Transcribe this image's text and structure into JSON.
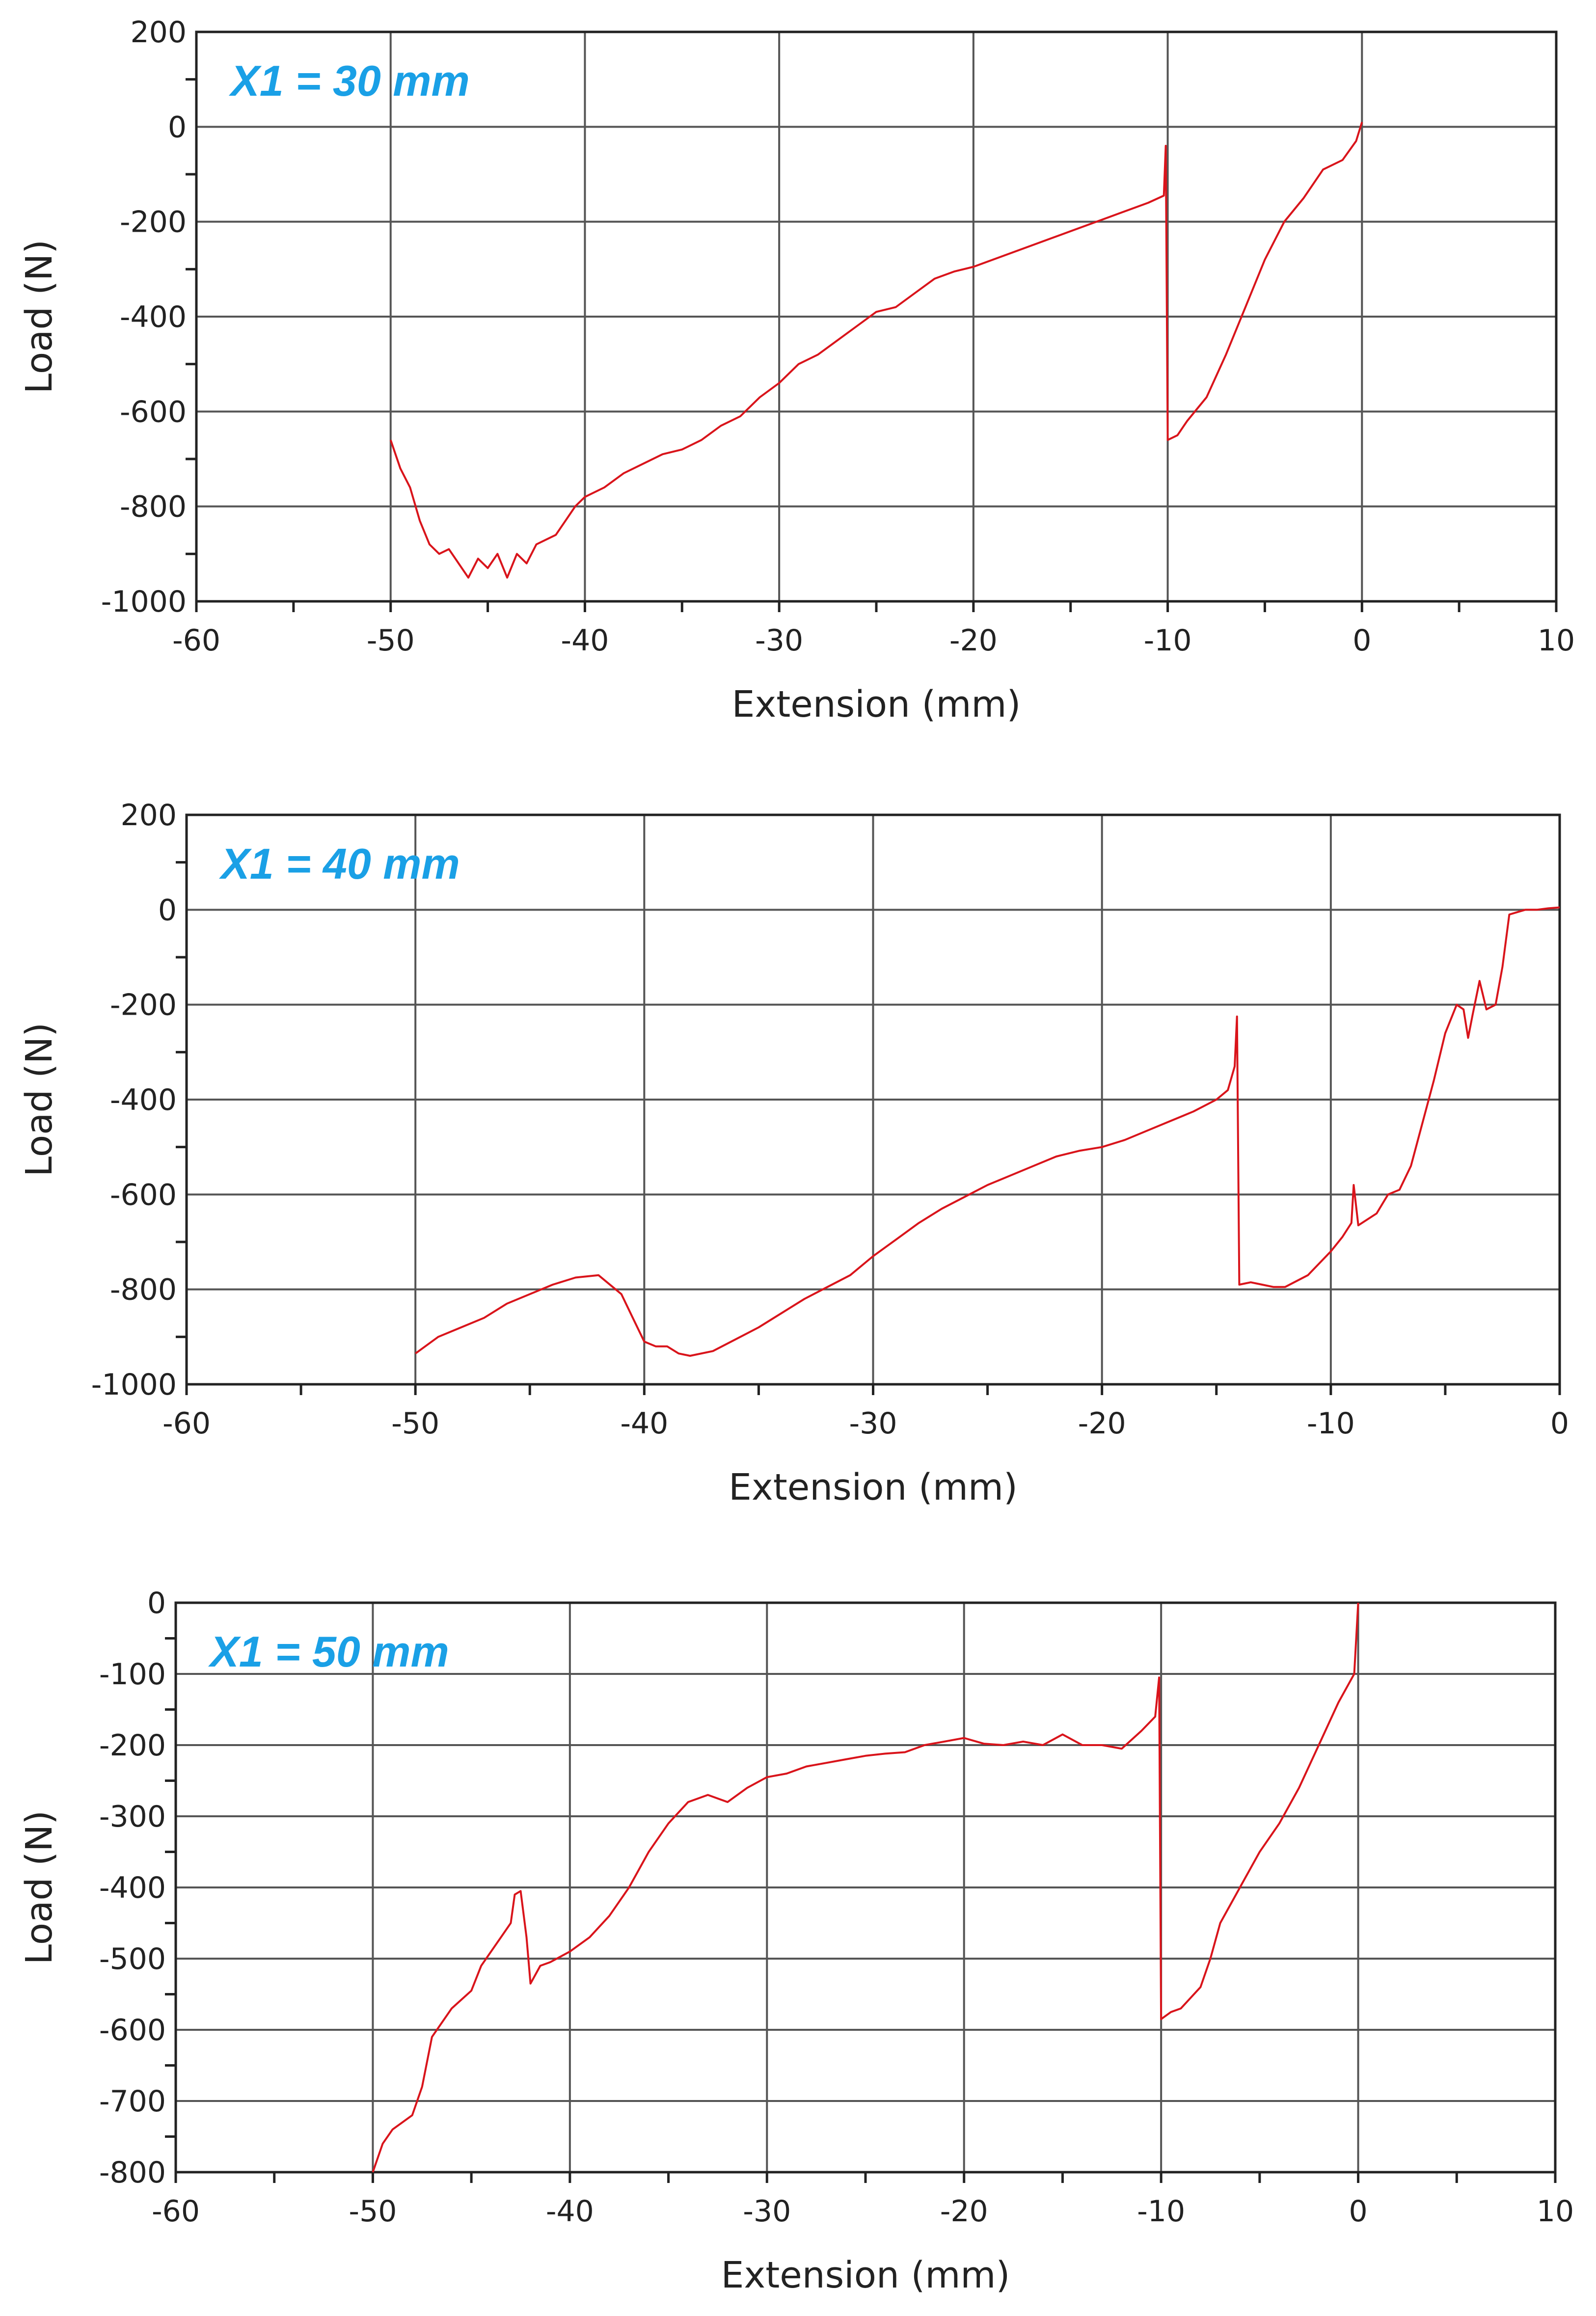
{
  "figure": {
    "line_color": "#d9141b",
    "title_color": "#1aa0e6"
  },
  "chart_data": [
    {
      "type": "line",
      "title": "X1 = 30 mm",
      "xlabel": "Extension (mm)",
      "ylabel": "Load (N)",
      "xlim": [
        -60,
        10
      ],
      "ylim": [
        -1000,
        200
      ],
      "xticks": [
        -60,
        -50,
        -40,
        -30,
        -20,
        -10,
        0,
        10
      ],
      "yticks": [
        -1000,
        -800,
        -600,
        -400,
        -200,
        0,
        200
      ],
      "grid": true,
      "series": [
        {
          "name": "load",
          "points": [
            [
              -50,
              -660
            ],
            [
              -49.5,
              -720
            ],
            [
              -49,
              -760
            ],
            [
              -48.5,
              -830
            ],
            [
              -48,
              -880
            ],
            [
              -47.5,
              -900
            ],
            [
              -47,
              -890
            ],
            [
              -46.5,
              -920
            ],
            [
              -46,
              -950
            ],
            [
              -45.5,
              -910
            ],
            [
              -45,
              -930
            ],
            [
              -44.5,
              -900
            ],
            [
              -44,
              -950
            ],
            [
              -43.5,
              -900
            ],
            [
              -43,
              -920
            ],
            [
              -42.5,
              -880
            ],
            [
              -42,
              -870
            ],
            [
              -41.5,
              -860
            ],
            [
              -41,
              -830
            ],
            [
              -40.5,
              -800
            ],
            [
              -40,
              -780
            ],
            [
              -39,
              -760
            ],
            [
              -38,
              -730
            ],
            [
              -37,
              -710
            ],
            [
              -36,
              -690
            ],
            [
              -35,
              -680
            ],
            [
              -34,
              -660
            ],
            [
              -33,
              -630
            ],
            [
              -32,
              -610
            ],
            [
              -31,
              -570
            ],
            [
              -30,
              -540
            ],
            [
              -29,
              -500
            ],
            [
              -28,
              -480
            ],
            [
              -27,
              -450
            ],
            [
              -26,
              -420
            ],
            [
              -25,
              -390
            ],
            [
              -24,
              -380
            ],
            [
              -23,
              -350
            ],
            [
              -22,
              -320
            ],
            [
              -21,
              -305
            ],
            [
              -20,
              -295
            ],
            [
              -19,
              -280
            ],
            [
              -18,
              -265
            ],
            [
              -17,
              -250
            ],
            [
              -16,
              -235
            ],
            [
              -15,
              -220
            ],
            [
              -14,
              -205
            ],
            [
              -13,
              -190
            ],
            [
              -12,
              -175
            ],
            [
              -11,
              -160
            ],
            [
              -10.2,
              -145
            ],
            [
              -10.1,
              -40
            ],
            [
              -10,
              -660
            ],
            [
              -9.5,
              -650
            ],
            [
              -9,
              -620
            ],
            [
              -8,
              -570
            ],
            [
              -7,
              -480
            ],
            [
              -6,
              -380
            ],
            [
              -5,
              -280
            ],
            [
              -4,
              -200
            ],
            [
              -3,
              -150
            ],
            [
              -2,
              -90
            ],
            [
              -1,
              -70
            ],
            [
              -0.3,
              -30
            ],
            [
              0,
              10
            ]
          ]
        }
      ]
    },
    {
      "type": "line",
      "title": "X1 = 40 mm",
      "xlabel": "Extension (mm)",
      "ylabel": "Load (N)",
      "xlim": [
        -60,
        0
      ],
      "ylim": [
        -1000,
        200
      ],
      "xticks": [
        -60,
        -50,
        -40,
        -30,
        -20,
        -10,
        0
      ],
      "yticks": [
        -1000,
        -800,
        -600,
        -400,
        -200,
        0,
        200
      ],
      "grid": true,
      "series": [
        {
          "name": "load",
          "points": [
            [
              -50,
              -935
            ],
            [
              -49,
              -900
            ],
            [
              -48,
              -880
            ],
            [
              -47,
              -860
            ],
            [
              -46,
              -830
            ],
            [
              -45,
              -810
            ],
            [
              -44,
              -790
            ],
            [
              -43,
              -775
            ],
            [
              -42,
              -770
            ],
            [
              -41,
              -810
            ],
            [
              -40.5,
              -860
            ],
            [
              -40,
              -910
            ],
            [
              -39.5,
              -920
            ],
            [
              -39,
              -920
            ],
            [
              -38.5,
              -935
            ],
            [
              -38,
              -940
            ],
            [
              -37,
              -930
            ],
            [
              -36,
              -905
            ],
            [
              -35,
              -880
            ],
            [
              -34,
              -850
            ],
            [
              -33,
              -820
            ],
            [
              -32,
              -795
            ],
            [
              -31,
              -770
            ],
            [
              -30,
              -730
            ],
            [
              -29,
              -695
            ],
            [
              -28,
              -660
            ],
            [
              -27,
              -630
            ],
            [
              -26,
              -605
            ],
            [
              -25,
              -580
            ],
            [
              -24,
              -560
            ],
            [
              -23,
              -540
            ],
            [
              -22,
              -520
            ],
            [
              -21,
              -508
            ],
            [
              -20,
              -500
            ],
            [
              -19,
              -485
            ],
            [
              -18,
              -465
            ],
            [
              -17,
              -445
            ],
            [
              -16,
              -425
            ],
            [
              -15,
              -400
            ],
            [
              -14.5,
              -380
            ],
            [
              -14.2,
              -330
            ],
            [
              -14.1,
              -225
            ],
            [
              -14,
              -790
            ],
            [
              -13.5,
              -785
            ],
            [
              -13,
              -790
            ],
            [
              -12.5,
              -795
            ],
            [
              -12,
              -795
            ],
            [
              -11,
              -770
            ],
            [
              -10,
              -720
            ],
            [
              -9.5,
              -690
            ],
            [
              -9.1,
              -660
            ],
            [
              -9,
              -580
            ],
            [
              -8.8,
              -665
            ],
            [
              -8,
              -640
            ],
            [
              -7.5,
              -600
            ],
            [
              -7,
              -590
            ],
            [
              -6.5,
              -540
            ],
            [
              -6,
              -450
            ],
            [
              -5.5,
              -360
            ],
            [
              -5,
              -260
            ],
            [
              -4.5,
              -200
            ],
            [
              -4.2,
              -210
            ],
            [
              -4,
              -270
            ],
            [
              -3.8,
              -220
            ],
            [
              -3.5,
              -150
            ],
            [
              -3.2,
              -210
            ],
            [
              -2.8,
              -200
            ],
            [
              -2.5,
              -120
            ],
            [
              -2.2,
              -10
            ],
            [
              -1.5,
              0
            ],
            [
              -1,
              0
            ],
            [
              -0.5,
              3
            ],
            [
              0,
              5
            ]
          ]
        }
      ]
    },
    {
      "type": "line",
      "title": "X1 = 50 mm",
      "xlabel": "Extension (mm)",
      "ylabel": "Load (N)",
      "xlim": [
        -60,
        10
      ],
      "ylim": [
        -800,
        0
      ],
      "xticks": [
        -60,
        -50,
        -40,
        -30,
        -20,
        -10,
        0,
        10
      ],
      "yticks": [
        -800,
        -700,
        -600,
        -500,
        -400,
        -300,
        -200,
        -100,
        0
      ],
      "grid": true,
      "series": [
        {
          "name": "load",
          "points": [
            [
              -50,
              -800
            ],
            [
              -49.5,
              -760
            ],
            [
              -49,
              -740
            ],
            [
              -48,
              -720
            ],
            [
              -47.5,
              -680
            ],
            [
              -47,
              -610
            ],
            [
              -46,
              -570
            ],
            [
              -45,
              -545
            ],
            [
              -44.5,
              -510
            ],
            [
              -44,
              -490
            ],
            [
              -43.5,
              -470
            ],
            [
              -43,
              -450
            ],
            [
              -42.8,
              -410
            ],
            [
              -42.5,
              -405
            ],
            [
              -42.2,
              -470
            ],
            [
              -42,
              -535
            ],
            [
              -41.5,
              -510
            ],
            [
              -41,
              -505
            ],
            [
              -40,
              -490
            ],
            [
              -39,
              -470
            ],
            [
              -38,
              -440
            ],
            [
              -37,
              -400
            ],
            [
              -36,
              -350
            ],
            [
              -35,
              -310
            ],
            [
              -34,
              -280
            ],
            [
              -33,
              -270
            ],
            [
              -32,
              -280
            ],
            [
              -31,
              -260
            ],
            [
              -30,
              -245
            ],
            [
              -29,
              -240
            ],
            [
              -28,
              -230
            ],
            [
              -27,
              -225
            ],
            [
              -26,
              -220
            ],
            [
              -25,
              -215
            ],
            [
              -24,
              -212
            ],
            [
              -23,
              -210
            ],
            [
              -22,
              -200
            ],
            [
              -21,
              -195
            ],
            [
              -20,
              -190
            ],
            [
              -19,
              -198
            ],
            [
              -18,
              -200
            ],
            [
              -17,
              -195
            ],
            [
              -16,
              -200
            ],
            [
              -15,
              -185
            ],
            [
              -14,
              -200
            ],
            [
              -13,
              -200
            ],
            [
              -12,
              -205
            ],
            [
              -11,
              -180
            ],
            [
              -10.3,
              -160
            ],
            [
              -10.1,
              -105
            ],
            [
              -10,
              -585
            ],
            [
              -9.5,
              -575
            ],
            [
              -9,
              -570
            ],
            [
              -8,
              -540
            ],
            [
              -7.5,
              -500
            ],
            [
              -7,
              -450
            ],
            [
              -6,
              -400
            ],
            [
              -5,
              -350
            ],
            [
              -4,
              -310
            ],
            [
              -3,
              -260
            ],
            [
              -2,
              -200
            ],
            [
              -1,
              -140
            ],
            [
              -0.2,
              -100
            ],
            [
              0,
              0
            ]
          ]
        }
      ]
    }
  ]
}
